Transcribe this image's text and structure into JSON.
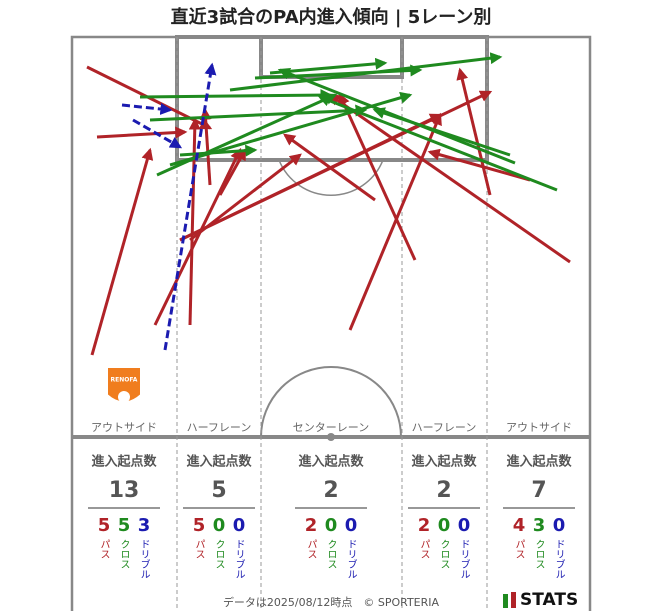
{
  "title": "直近3試合のPA内進入傾向 | 5レーン別",
  "team_badge": "RENOFA",
  "lanes": [
    {
      "name": "アウトサイド",
      "label": "進入起点数",
      "total": 13,
      "breakdown": [
        {
          "value": 5,
          "label": "パス"
        },
        {
          "value": 5,
          "label": "クロス"
        },
        {
          "value": 3,
          "label": "ドリブル"
        }
      ]
    },
    {
      "name": "ハーフレーン",
      "label": "進入起点数",
      "total": 5,
      "breakdown": [
        {
          "value": 5,
          "label": "パス"
        },
        {
          "value": 0,
          "label": "クロス"
        },
        {
          "value": 0,
          "label": "ドリブル"
        }
      ]
    },
    {
      "name": "センターレーン",
      "label": "進入起点数",
      "total": 2,
      "breakdown": [
        {
          "value": 2,
          "label": "パス"
        },
        {
          "value": 0,
          "label": "クロス"
        },
        {
          "value": 0,
          "label": "ドリブル"
        }
      ]
    },
    {
      "name": "ハーフレーン",
      "label": "進入起点数",
      "total": 2,
      "breakdown": [
        {
          "value": 2,
          "label": "パス"
        },
        {
          "value": 0,
          "label": "クロス"
        },
        {
          "value": 0,
          "label": "ドリブル"
        }
      ]
    },
    {
      "name": "アウトサイド",
      "label": "進入起点数",
      "total": 7,
      "breakdown": [
        {
          "value": 4,
          "label": "パス"
        },
        {
          "value": 3,
          "label": "クロス"
        },
        {
          "value": 0,
          "label": "ドリブル"
        }
      ]
    }
  ],
  "footer": "データは2025/08/12時点　© SPORTERIA",
  "logo": "STATS"
}
